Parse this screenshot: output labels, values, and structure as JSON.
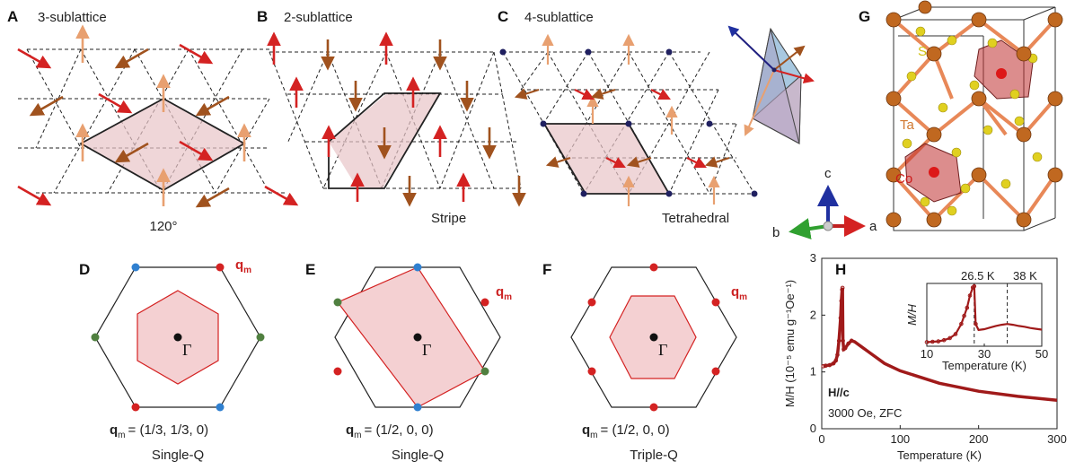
{
  "panels": {
    "A": {
      "label": "A",
      "title": "3-sublattice",
      "caption": "120°"
    },
    "B": {
      "label": "B",
      "title": "2-sublattice",
      "caption": "Stripe"
    },
    "C": {
      "label": "C",
      "title": "4-sublattice",
      "caption": "Tetrahedral"
    },
    "D": {
      "label": "D",
      "qlabel": "q",
      "qsub": "m",
      "gamma": "Γ",
      "formula": "= (1/3, 1/3, 0)",
      "caption": "Single-Q"
    },
    "E": {
      "label": "E",
      "qlabel": "q",
      "qsub": "m",
      "gamma": "Γ",
      "formula": "= (1/2, 0, 0)",
      "caption": "Single-Q"
    },
    "F": {
      "label": "F",
      "qlabel": "q",
      "qsub": "m",
      "gamma": "Γ",
      "formula": "= (1/2, 0, 0)",
      "caption": "Triple-Q"
    },
    "G": {
      "label": "G",
      "atoms": [
        "S",
        "Ta",
        "Co"
      ],
      "axes": [
        "a",
        "b",
        "c"
      ]
    },
    "H": {
      "label": "H",
      "field_dir": "H//c",
      "conditions": "3000 Oe, ZFC"
    }
  },
  "colors": {
    "red_spin": "#d42222",
    "orange_spin": "#e8a070",
    "brown_spin": "#a0521e",
    "bz_red": "#d42222",
    "bz_blue": "#3080d0",
    "bz_green": "#508040",
    "curve": "#a01a1a",
    "ta": "#d07830",
    "s": "#e0d020",
    "co": "#cc1818"
  },
  "chart_data": [
    {
      "type": "line",
      "xlabel": "Temperature (K)",
      "ylabel": "M/H (10⁻⁵ emu g⁻¹Oe⁻¹)",
      "xlim": [
        0,
        300
      ],
      "ylim": [
        0,
        3
      ],
      "xticks": [
        "0",
        "100",
        "200",
        "300"
      ],
      "yticks": [
        "0",
        "1",
        "2",
        "3"
      ],
      "series": [
        {
          "x": [
            2,
            5,
            10,
            15,
            18,
            20,
            22,
            24,
            25,
            26,
            26.5,
            27,
            28,
            30,
            34,
            38,
            42,
            50,
            60,
            80,
            100,
            150,
            200,
            250,
            300
          ],
          "y": [
            1.1,
            1.11,
            1.12,
            1.15,
            1.2,
            1.3,
            1.55,
            1.95,
            2.25,
            2.45,
            2.48,
            1.55,
            1.4,
            1.42,
            1.5,
            1.55,
            1.53,
            1.45,
            1.35,
            1.15,
            1.02,
            0.8,
            0.66,
            0.57,
            0.5
          ]
        }
      ]
    },
    {
      "type": "line",
      "xlabel": "Temperature (K)",
      "ylabel": "M/H",
      "xlim": [
        10,
        50
      ],
      "xticks": [
        "10",
        "30",
        "50"
      ],
      "annotations": [
        "26.5 K",
        "38 K"
      ],
      "vlines": [
        26.5,
        38
      ],
      "series": [
        {
          "x": [
            10,
            12,
            14,
            16,
            18,
            20,
            22,
            23,
            24,
            25,
            26,
            26.5,
            27,
            28,
            30,
            32,
            34,
            36,
            38,
            40,
            42,
            44,
            46,
            48,
            50
          ],
          "y": [
            1.1,
            1.11,
            1.12,
            1.15,
            1.2,
            1.3,
            1.55,
            1.75,
            1.95,
            2.25,
            2.45,
            2.48,
            1.55,
            1.4,
            1.42,
            1.46,
            1.5,
            1.53,
            1.55,
            1.53,
            1.5,
            1.48,
            1.45,
            1.43,
            1.41
          ]
        }
      ]
    }
  ]
}
